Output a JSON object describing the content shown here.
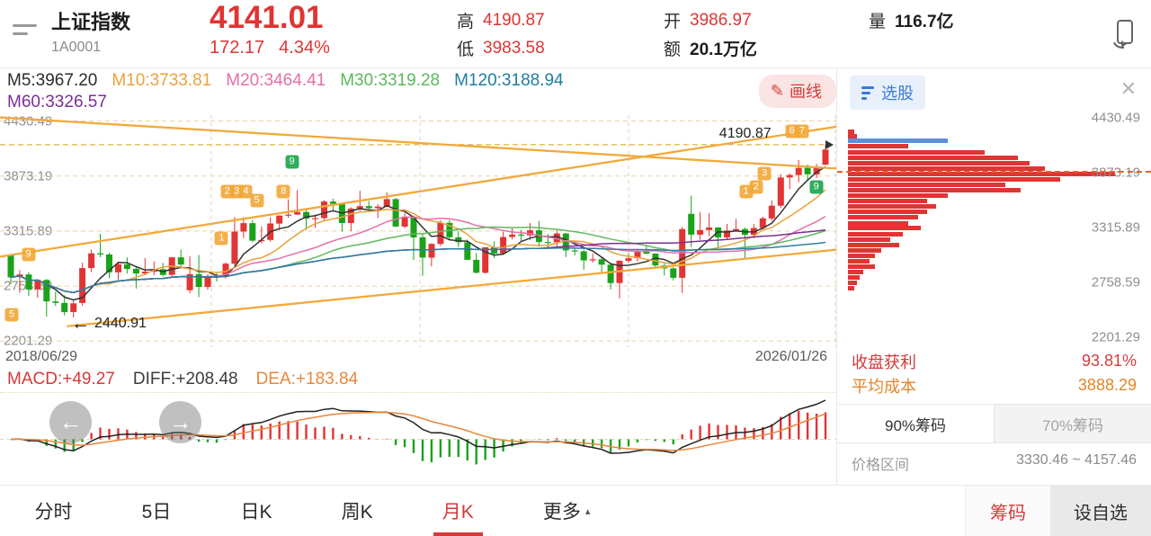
{
  "header": {
    "title": "上证指数",
    "code": "1A0001",
    "price": "4141.01",
    "change": "172.17",
    "change_pct": "4.34%",
    "high_label": "高",
    "high": "4190.87",
    "low_label": "低",
    "low": "3983.58",
    "open_label": "开",
    "open": "3986.97",
    "amount_label": "额",
    "amount": "20.1万亿",
    "volume_label": "量",
    "volume": "116.7亿"
  },
  "icons": {
    "pencil": "✎",
    "close": "✕",
    "caret_up": "▴",
    "arrow_left": "←",
    "nav_left": "←",
    "nav_right": "→"
  },
  "toolbar": {
    "draw_line_label": "画线",
    "ma_lines": [
      {
        "text": "M5:3967.20",
        "color": "#2b2b2b"
      },
      {
        "text": "M10:3733.81",
        "color": "#eba13c"
      },
      {
        "text": "M20:3464.41",
        "color": "#e56fa8"
      },
      {
        "text": "M30:3319.28",
        "color": "#5cb85c"
      },
      {
        "text": "M120:3188.94",
        "color": "#1f7d9f"
      }
    ],
    "ma_line2": {
      "text": "M60:3326.57",
      "color": "#7b2f96"
    }
  },
  "chart": {
    "y_axis_labels": [
      "4430.49",
      "3873.19",
      "3315.89",
      "2758.59",
      "2201.29"
    ],
    "y_axis_values": [
      4430.49,
      3873.19,
      3315.89,
      2758.59,
      2201.29
    ],
    "view_max": 4490,
    "view_min": 2140,
    "high_line_value": 4190.87,
    "high_annotation": "4190.87",
    "low_annotation": "2440.91",
    "date_start": "2018/06/29",
    "date_end": "2026/01/26",
    "trend_lines": [
      [
        0,
        1,
        100,
        23
      ],
      [
        0,
        61,
        100,
        5
      ],
      [
        8,
        91,
        100,
        58
      ]
    ],
    "markers": [
      {
        "n": "5",
        "x": 1.4,
        "y": 86,
        "c": "o"
      },
      {
        "n": "9",
        "x": 3.4,
        "y": 60,
        "c": "o"
      },
      {
        "n": "1",
        "x": 26.5,
        "y": 53,
        "c": "o"
      },
      {
        "n": "2",
        "x": 27.2,
        "y": 33,
        "c": "o"
      },
      {
        "n": "3",
        "x": 28.3,
        "y": 33,
        "c": "o"
      },
      {
        "n": "4",
        "x": 29.4,
        "y": 33,
        "c": "o"
      },
      {
        "n": "5",
        "x": 30.7,
        "y": 37,
        "c": "o"
      },
      {
        "n": "8",
        "x": 33.9,
        "y": 33,
        "c": "o"
      },
      {
        "n": "9",
        "x": 34.9,
        "y": 20,
        "c": "g"
      },
      {
        "n": "1",
        "x": 89.2,
        "y": 33,
        "c": "o"
      },
      {
        "n": "2",
        "x": 90.4,
        "y": 31,
        "c": "o"
      },
      {
        "n": "3",
        "x": 91.4,
        "y": 25,
        "c": "o"
      },
      {
        "n": "6",
        "x": 94.7,
        "y": 7,
        "c": "o"
      },
      {
        "n": "7",
        "x": 95.9,
        "y": 7,
        "c": "o"
      },
      {
        "n": "9",
        "x": 97.6,
        "y": 31,
        "c": "g"
      }
    ],
    "candles": [
      [
        3070,
        3080,
        2780,
        2847
      ],
      [
        2850,
        2920,
        2690,
        2876
      ],
      [
        2876,
        2900,
        2660,
        2725
      ],
      [
        2725,
        2830,
        2640,
        2821
      ],
      [
        2820,
        2830,
        2449,
        2603
      ],
      [
        2603,
        2703,
        2555,
        2588
      ],
      [
        2588,
        2666,
        2462,
        2494
      ],
      [
        2497,
        2618,
        2440.91,
        2584
      ],
      [
        2588,
        2994,
        2560,
        2941
      ],
      [
        2941,
        3129,
        2900,
        3090
      ],
      [
        3090,
        3288,
        3052,
        3078
      ],
      [
        3078,
        3098,
        2838,
        2898
      ],
      [
        2898,
        3008,
        2822,
        2979
      ],
      [
        2979,
        3048,
        2886,
        2933
      ],
      [
        2933,
        2945,
        2733,
        2886
      ],
      [
        2886,
        3042,
        2870,
        2905
      ],
      [
        2905,
        3008,
        2870,
        2929
      ],
      [
        2929,
        2993,
        2857,
        2872
      ],
      [
        2872,
        3053,
        2857,
        3050
      ],
      [
        3050,
        3127,
        2955,
        2977
      ],
      [
        2717,
        3060,
        2685,
        2880
      ],
      [
        2880,
        3074,
        2646,
        2750
      ],
      [
        2750,
        2878,
        2721,
        2860
      ],
      [
        2860,
        2898,
        2804,
        2852
      ],
      [
        2852,
        2998,
        2833,
        2985
      ],
      [
        2985,
        3458,
        2965,
        3310
      ],
      [
        3310,
        3456,
        3245,
        3396
      ],
      [
        3396,
        3425,
        3202,
        3218
      ],
      [
        3218,
        3362,
        3190,
        3225
      ],
      [
        3225,
        3457,
        3209,
        3392
      ],
      [
        3392,
        3474,
        3325,
        3473
      ],
      [
        3474,
        3637,
        3448,
        3483
      ],
      [
        3483,
        3731,
        3478,
        3509
      ],
      [
        3509,
        3527,
        3328,
        3442
      ],
      [
        3442,
        3484,
        3347,
        3447
      ],
      [
        3447,
        3629,
        3418,
        3615
      ],
      [
        3615,
        3642,
        3514,
        3591
      ],
      [
        3591,
        3598,
        3312,
        3397
      ],
      [
        3397,
        3556,
        3313,
        3544
      ],
      [
        3544,
        3723,
        3518,
        3568
      ],
      [
        3568,
        3620,
        3517,
        3547
      ],
      [
        3547,
        3589,
        3448,
        3564
      ],
      [
        3564,
        3708,
        3556,
        3639
      ],
      [
        3639,
        3651,
        3356,
        3361
      ],
      [
        3361,
        3500,
        3346,
        3462
      ],
      [
        3462,
        3472,
        3023,
        3252
      ],
      [
        3252,
        3288,
        2863,
        3047
      ],
      [
        3047,
        3192,
        2958,
        3186
      ],
      [
        3186,
        3424,
        3165,
        3399
      ],
      [
        3399,
        3425,
        3235,
        3253
      ],
      [
        3253,
        3314,
        3155,
        3202
      ],
      [
        3202,
        3230,
        3024,
        3024
      ],
      [
        3024,
        3093,
        2885,
        2893
      ],
      [
        2893,
        3150,
        2885,
        3151
      ],
      [
        3151,
        3212,
        3044,
        3089
      ],
      [
        3089,
        3310,
        3073,
        3255
      ],
      [
        3255,
        3342,
        3230,
        3280
      ],
      [
        3280,
        3328,
        3209,
        3272
      ],
      [
        3272,
        3397,
        3227,
        3323
      ],
      [
        3323,
        3419,
        3158,
        3205
      ],
      [
        3205,
        3284,
        3144,
        3202
      ],
      [
        3202,
        3322,
        3135,
        3291
      ],
      [
        3291,
        3295,
        3053,
        3120
      ],
      [
        3120,
        3143,
        3070,
        3110
      ],
      [
        3110,
        3126,
        2923,
        3019
      ],
      [
        3019,
        3089,
        2996,
        3030
      ],
      [
        3030,
        3059,
        2882,
        2975
      ],
      [
        2975,
        2994,
        2724,
        2789
      ],
      [
        2789,
        3019,
        2635,
        3015
      ],
      [
        3015,
        3090,
        2992,
        3041
      ],
      [
        3041,
        3126,
        3007,
        3105
      ],
      [
        3105,
        3174,
        3083,
        3087
      ],
      [
        3087,
        3091,
        2933,
        2967
      ],
      [
        2967,
        2994,
        2865,
        2938
      ],
      [
        2938,
        2948,
        2815,
        2842
      ],
      [
        2842,
        3358,
        2689,
        3336
      ],
      [
        3490,
        3674,
        3153,
        3280
      ],
      [
        3280,
        3509,
        3227,
        3326
      ],
      [
        3326,
        3494,
        3262,
        3352
      ],
      [
        3352,
        3353,
        3140,
        3251
      ],
      [
        3251,
        3389,
        3227,
        3321
      ],
      [
        3321,
        3437,
        3315,
        3336
      ],
      [
        3336,
        3352,
        3040,
        3279
      ],
      [
        3279,
        3387,
        3243,
        3347
      ],
      [
        3347,
        3462,
        3331,
        3444
      ],
      [
        3444,
        3626,
        3419,
        3573
      ],
      [
        3573,
        3889,
        3549,
        3858
      ],
      [
        3858,
        3899,
        3741,
        3883
      ],
      [
        3883,
        4035,
        3810,
        3955
      ],
      [
        3955,
        3990,
        3835,
        3890
      ],
      [
        3890,
        3995,
        3852,
        3969
      ],
      [
        3986.97,
        4190.87,
        3983.58,
        4141.01
      ]
    ]
  },
  "macd": {
    "macd_label": "MACD:+49.27",
    "diff_label": "DIFF:+208.48",
    "dea_label": "DEA:+183.84"
  },
  "right_panel": {
    "stock_pick_label": "选股",
    "profit_label": "收盘获利",
    "profit_value": "93.81%",
    "avg_cost_label": "平均成本",
    "avg_cost": "3888.29",
    "avg_cost_value": 3888.29,
    "tab_90": "90%筹码",
    "tab_70": "70%筹码",
    "price_range_label": "价格区间",
    "price_range": "3330.46 ~ 4157.46",
    "chip_bars": [
      [
        7.8,
        2,
        "r"
      ],
      [
        9.8,
        3,
        "r"
      ],
      [
        11.8,
        33,
        "b"
      ],
      [
        14.1,
        20,
        "r"
      ],
      [
        16.5,
        45,
        "r"
      ],
      [
        18.8,
        56,
        "r"
      ],
      [
        21.2,
        60,
        "r"
      ],
      [
        23.5,
        65,
        "r"
      ],
      [
        25.9,
        88,
        "r"
      ],
      [
        28.2,
        70,
        "r"
      ],
      [
        30.6,
        52,
        "r"
      ],
      [
        32.9,
        57,
        "r"
      ],
      [
        35.3,
        33,
        "r"
      ],
      [
        37.6,
        26,
        "r"
      ],
      [
        40,
        29,
        "r"
      ],
      [
        42.4,
        26,
        "r"
      ],
      [
        44.7,
        23,
        "r"
      ],
      [
        47.1,
        20,
        "r"
      ],
      [
        49.4,
        24,
        "r"
      ],
      [
        51.8,
        18,
        "r"
      ],
      [
        54.1,
        14,
        "r"
      ],
      [
        56.5,
        17,
        "r"
      ],
      [
        58.8,
        11,
        "r"
      ],
      [
        61.2,
        9,
        "r"
      ],
      [
        63.5,
        7,
        "r"
      ],
      [
        65.9,
        9,
        "r"
      ],
      [
        68.2,
        5,
        "r"
      ],
      [
        70.6,
        4,
        "r"
      ],
      [
        72.9,
        3,
        "r"
      ],
      [
        75.3,
        2,
        "r"
      ]
    ]
  },
  "bottom": {
    "tabs": [
      {
        "label": "分时"
      },
      {
        "label": "5日"
      },
      {
        "label": "日K"
      },
      {
        "label": "周K"
      },
      {
        "label": "月K",
        "active": true
      },
      {
        "label": "更多",
        "caret": true
      }
    ],
    "chips_label": "筹码",
    "watchlist_label": "设自选"
  },
  "colors": {
    "up": "#e13434",
    "down": "#1aa31a",
    "trend": "#f2a93b",
    "grid": "#ecd3a8",
    "chip_red": "#e13434",
    "chip_blue": "#5b8fdb"
  }
}
